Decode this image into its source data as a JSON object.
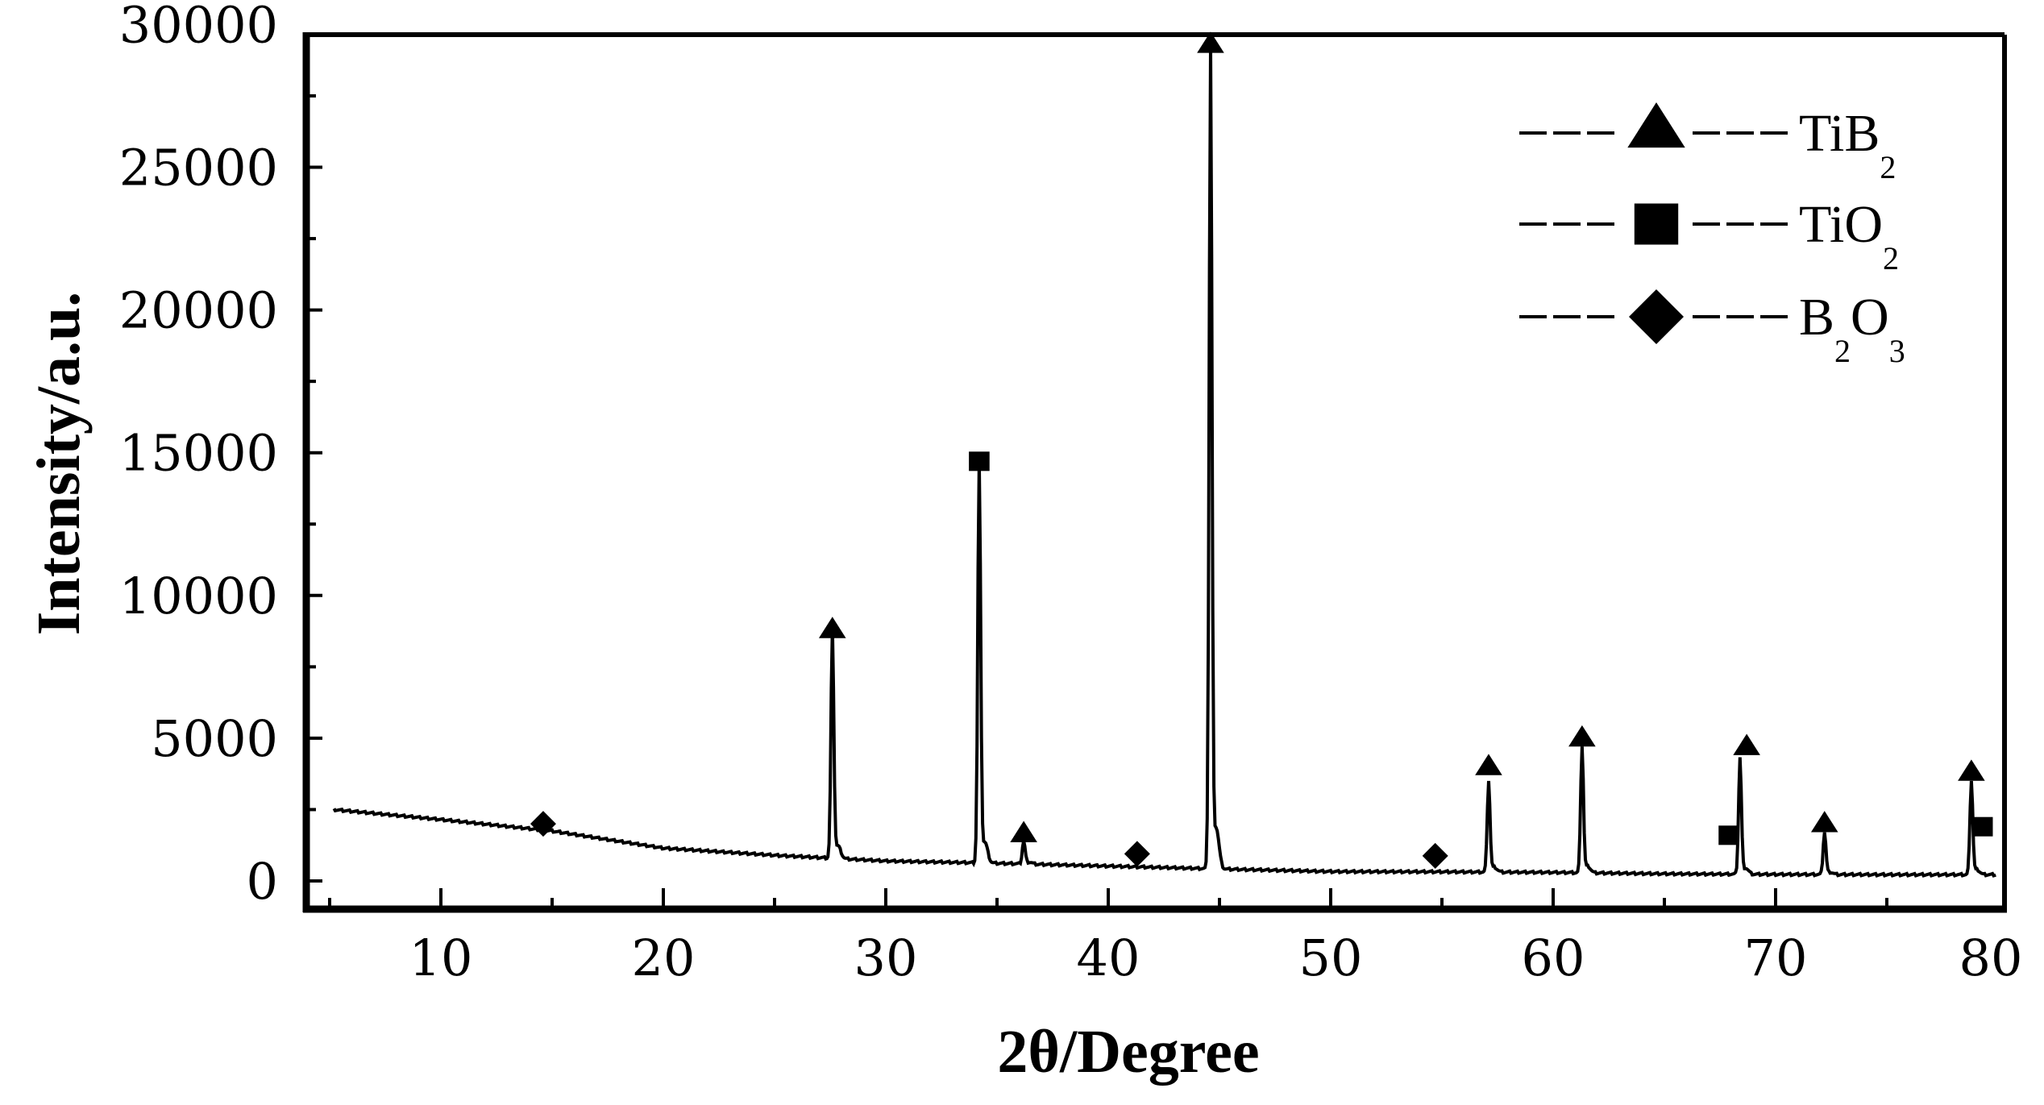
{
  "chart_data": {
    "type": "line",
    "title": "",
    "xlabel": "2θ/Degree",
    "ylabel": "Intensity/a.u.",
    "xlim": [
      4.8,
      80
    ],
    "ylim": [
      -1000,
      30200
    ],
    "x_ticks": [
      10,
      20,
      30,
      40,
      50,
      60,
      70,
      80
    ],
    "y_ticks": [
      0,
      5000,
      10000,
      15000,
      20000,
      25000,
      30000
    ],
    "grid": false,
    "legend_position": "upper right",
    "legend": [
      {
        "symbol": "triangle",
        "name": "TiB",
        "sub": "2",
        "label": "TiB2"
      },
      {
        "symbol": "square",
        "name": "TiO",
        "sub": "2",
        "label": "TiO2"
      },
      {
        "symbol": "diamond",
        "name": "B",
        "sub": "2",
        "name2": "O",
        "sub2": "3",
        "label": "B2O3"
      }
    ],
    "baseline": {
      "description": "decaying background",
      "points": [
        [
          5.2,
          2500
        ],
        [
          10,
          2150
        ],
        [
          15,
          1750
        ],
        [
          20,
          1150
        ],
        [
          25,
          900
        ],
        [
          30,
          700
        ],
        [
          35,
          620
        ],
        [
          40,
          520
        ],
        [
          45,
          420
        ],
        [
          50,
          330
        ],
        [
          55,
          320
        ],
        [
          60,
          300
        ],
        [
          65,
          250
        ],
        [
          70,
          230
        ],
        [
          75,
          220
        ],
        [
          80,
          220
        ]
      ]
    },
    "peaks": [
      {
        "x": 27.6,
        "intensity": 8800,
        "phase": "TiB2"
      },
      {
        "x": 34.2,
        "intensity": 14600,
        "phase": "TiO2"
      },
      {
        "x": 36.2,
        "intensity": 1400,
        "phase": "TiB2"
      },
      {
        "x": 44.6,
        "intensity": 29000,
        "phase": "TiB2"
      },
      {
        "x": 57.1,
        "intensity": 3500,
        "phase": "TiB2"
      },
      {
        "x": 61.3,
        "intensity": 4700,
        "phase": "TiB2"
      },
      {
        "x": 68.4,
        "intensity": 4300,
        "phase": "TiB2"
      },
      {
        "x": 72.2,
        "intensity": 1700,
        "phase": "TiB2"
      },
      {
        "x": 78.8,
        "intensity": 3500,
        "phase": "TiB2"
      }
    ],
    "markers": [
      {
        "x": 14.6,
        "y": 2000,
        "symbol": "diamond",
        "phase": "B2O3"
      },
      {
        "x": 27.6,
        "y": 8800,
        "symbol": "triangle",
        "phase": "TiB2"
      },
      {
        "x": 34.2,
        "y": 14700,
        "symbol": "square",
        "phase": "TiO2"
      },
      {
        "x": 36.2,
        "y": 1650,
        "symbol": "triangle",
        "phase": "TiB2"
      },
      {
        "x": 41.3,
        "y": 950,
        "symbol": "diamond",
        "phase": "B2O3"
      },
      {
        "x": 44.6,
        "y": 29300,
        "symbol": "triangle",
        "phase": "TiB2"
      },
      {
        "x": 54.7,
        "y": 880,
        "symbol": "diamond",
        "phase": "B2O3"
      },
      {
        "x": 57.1,
        "y": 4000,
        "symbol": "triangle",
        "phase": "TiB2"
      },
      {
        "x": 61.3,
        "y": 5000,
        "symbol": "triangle",
        "phase": "TiB2"
      },
      {
        "x": 67.9,
        "y": 1600,
        "symbol": "square",
        "phase": "TiO2"
      },
      {
        "x": 68.7,
        "y": 4700,
        "symbol": "triangle",
        "phase": "TiB2"
      },
      {
        "x": 72.2,
        "y": 2000,
        "symbol": "triangle",
        "phase": "TiB2"
      },
      {
        "x": 78.8,
        "y": 3800,
        "symbol": "triangle",
        "phase": "TiB2"
      },
      {
        "x": 79.3,
        "y": 1900,
        "symbol": "square",
        "phase": "TiO2"
      }
    ]
  },
  "colors": {
    "line": "#000000",
    "background": "#ffffff"
  }
}
